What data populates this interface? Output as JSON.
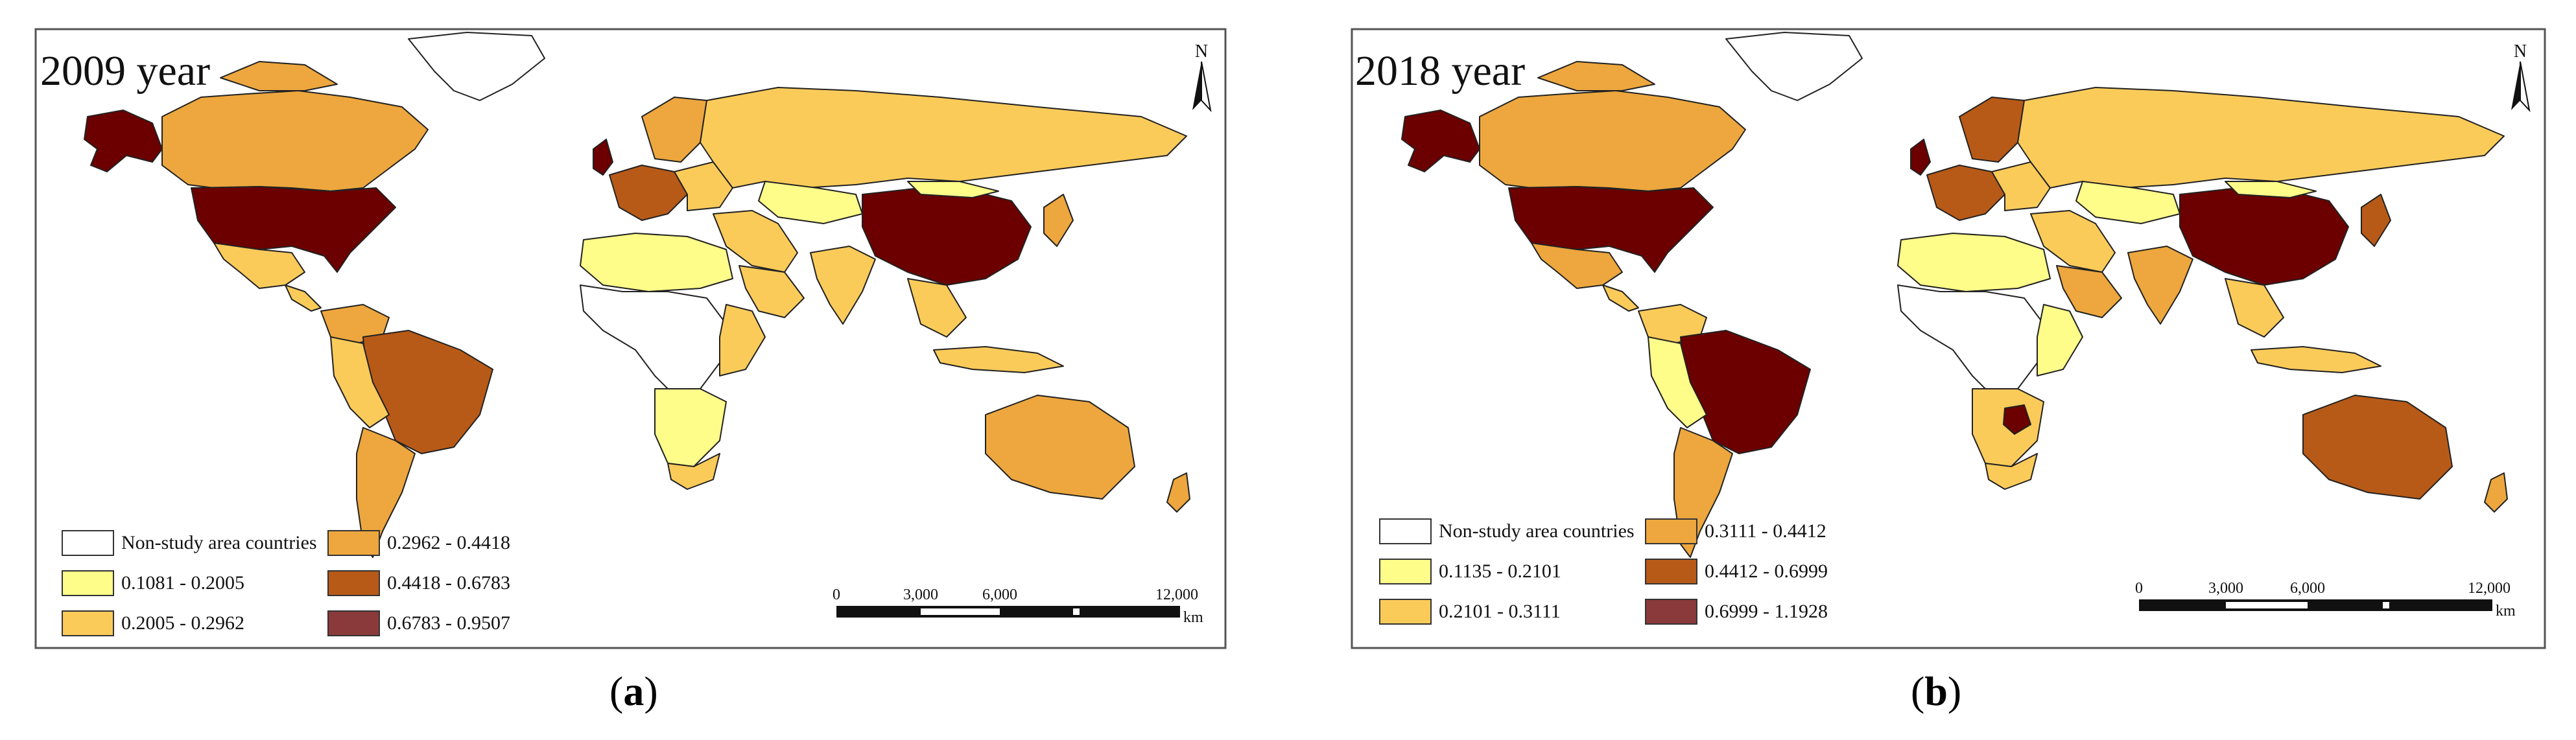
{
  "colors": {
    "nonstudy": "#ffffff",
    "c1": "#fffd8a",
    "c2": "#fbcb5a",
    "c3": "#eda73e",
    "c4": "#b85a17",
    "c5": "#6c0000",
    "c5_legend": "#8a3a3a",
    "border": "#222222"
  },
  "icons": {
    "north_arrow": "north-arrow-icon"
  },
  "panels": [
    {
      "year_title": "2009 year",
      "north_label": "N",
      "legend": [
        {
          "label": "Non-study area countries",
          "color": "#ffffff"
        },
        {
          "label": "0.1081 - 0.2005",
          "color": "#fffd8a"
        },
        {
          "label": "0.2005 - 0.2962",
          "color": "#fbcb5a"
        },
        {
          "label": "0.2962 - 0.4418",
          "color": "#eda73e"
        },
        {
          "label": "0.4418 - 0.6783",
          "color": "#b85a17"
        },
        {
          "label": "0.6783 - 0.9507",
          "color": "#8a3a3a"
        }
      ],
      "scale": {
        "ticks": [
          "0",
          "3,000",
          "6,000",
          "12,000"
        ],
        "unit": "km"
      },
      "caption_letter": "a"
    },
    {
      "year_title": "2018 year",
      "north_label": "N",
      "legend": [
        {
          "label": "Non-study area countries",
          "color": "#ffffff"
        },
        {
          "label": "0.1135 - 0.2101",
          "color": "#fffd8a"
        },
        {
          "label": "0.2101 - 0.3111",
          "color": "#fbcb5a"
        },
        {
          "label": "0.3111 - 0.4412",
          "color": "#eda73e"
        },
        {
          "label": "0.4412 - 0.6999",
          "color": "#b85a17"
        },
        {
          "label": "0.6999 - 1.1928",
          "color": "#8a3a3a"
        }
      ],
      "scale": {
        "ticks": [
          "0",
          "3,000",
          "6,000",
          "12,000"
        ],
        "unit": "km"
      },
      "caption_letter": "b"
    }
  ]
}
